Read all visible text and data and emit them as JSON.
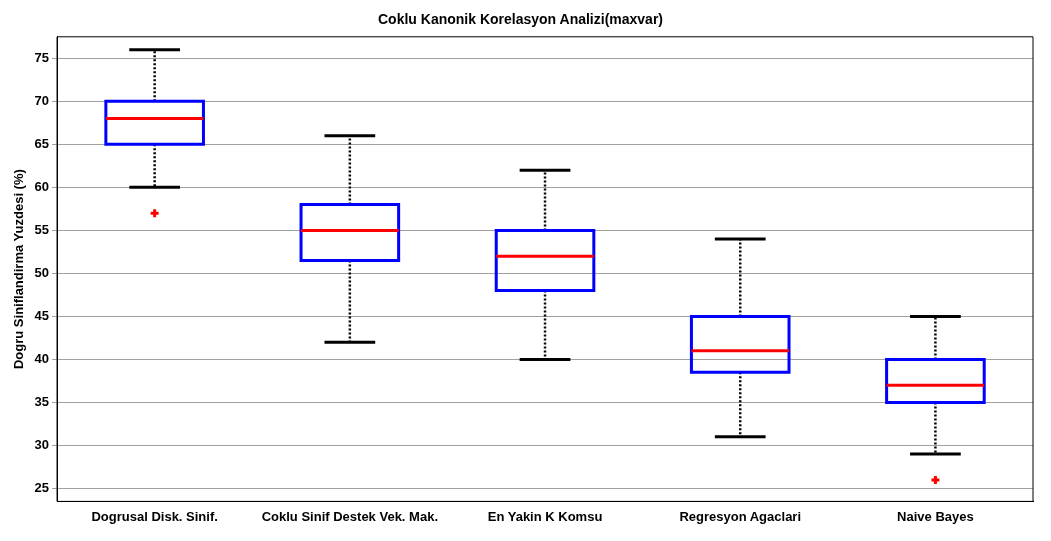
{
  "chart_data": {
    "type": "box",
    "title": "Coklu Kanonik Korelasyon Analizi(maxvar)",
    "ylabel": "Dogru Siniflandirma Yuzdesi (%)",
    "categories": [
      "Dogrusal Disk. Sinif.",
      "Coklu Sinif Destek Vek. Mak.",
      "En Yakin K Komsu",
      "Regresyon Agaclari",
      "Naive Bayes"
    ],
    "color": "#0000ff",
    "marker": "cross",
    "grid": "y",
    "ylim": [
      23.5,
      77.5
    ],
    "yticks": [
      25,
      30,
      35,
      40,
      45,
      50,
      55,
      60,
      65,
      70,
      75
    ],
    "boxes": [
      {
        "low": 60,
        "q1": 65,
        "median": 68,
        "q3": 70,
        "high": 76,
        "outliers": [
          57
        ]
      },
      {
        "low": 42,
        "q1": 51.5,
        "median": 55,
        "q3": 58,
        "high": 66
      },
      {
        "low": 40,
        "q1": 48,
        "median": 52,
        "q3": 55,
        "high": 62
      },
      {
        "low": 31,
        "q1": 38.5,
        "median": 41,
        "q3": 45,
        "high": 54
      },
      {
        "low": 29,
        "q1": 35,
        "median": 37,
        "q3": 40,
        "high": 45,
        "outliers": [
          26
        ]
      }
    ]
  }
}
